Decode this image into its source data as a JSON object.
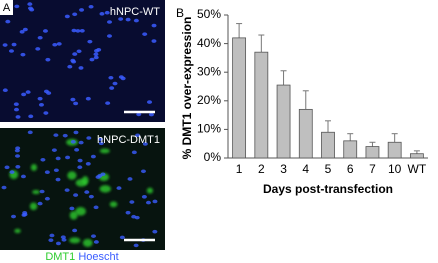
{
  "panel_a": {
    "label": "A",
    "images": [
      {
        "label": "hNPC-WT"
      },
      {
        "label": "hNPC-DMT1"
      }
    ],
    "legend": [
      {
        "name": "DMT1",
        "color": "#2ecc2e"
      },
      {
        "name": "Hoescht",
        "color": "#3a5cff"
      }
    ]
  },
  "chart_data": {
    "type": "bar",
    "panel_label": "B",
    "ylabel": "% DMT1 over-expression",
    "xlabel": "Days post-transfection",
    "categories": [
      "1",
      "2",
      "3",
      "4",
      "5",
      "6",
      "7",
      "10",
      "WT"
    ],
    "values": [
      42,
      37,
      25.5,
      17,
      9,
      6,
      4,
      5.5,
      1.5
    ],
    "errors": [
      5,
      6,
      5,
      6.5,
      4,
      2.5,
      1.5,
      3,
      1
    ],
    "color": "#bfbfbf",
    "ylim": [
      0,
      50
    ],
    "yticks": [
      {
        "value": 0,
        "label": "0%"
      },
      {
        "value": 10,
        "label": "10%"
      },
      {
        "value": 20,
        "label": "20%"
      },
      {
        "value": 30,
        "label": "30%"
      },
      {
        "value": 40,
        "label": "40%"
      },
      {
        "value": 50,
        "label": "50%"
      }
    ]
  }
}
